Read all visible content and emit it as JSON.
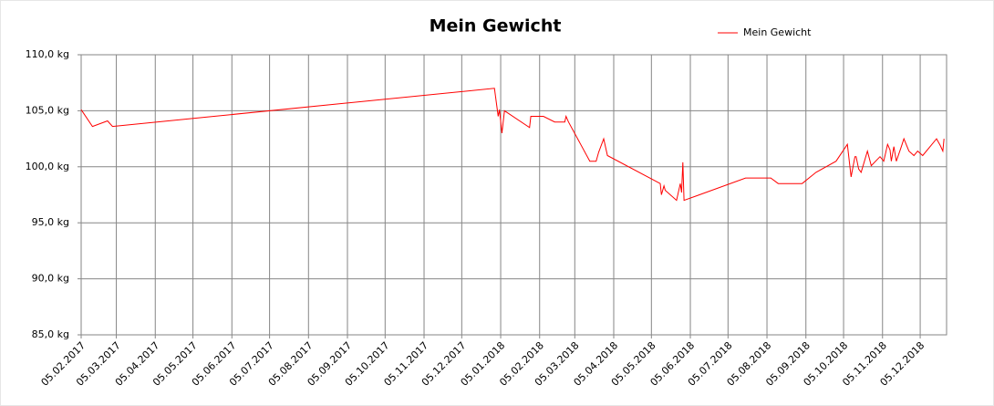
{
  "chart_data": {
    "type": "line",
    "title": "Mein Gewicht",
    "legend": "top-right",
    "grid": true,
    "x": [
      "2017-02-05",
      "2017-02-14",
      "2017-02-26",
      "2017-03-02",
      "2017-12-31",
      "2018-01-03",
      "2018-01-04",
      "2018-01-06",
      "2018-01-08",
      "2018-01-28",
      "2018-01-29",
      "2018-02-08",
      "2018-02-17",
      "2018-02-25",
      "2018-02-26",
      "2018-02-28",
      "2018-03-17",
      "2018-03-22",
      "2018-03-24",
      "2018-03-28",
      "2018-03-31",
      "2018-05-12",
      "2018-05-13",
      "2018-05-15",
      "2018-05-16",
      "2018-05-25",
      "2018-05-28",
      "2018-05-29",
      "2018-05-30",
      "2018-05-31",
      "2018-07-19",
      "2018-08-08",
      "2018-08-14",
      "2018-09-02",
      "2018-09-13",
      "2018-09-29",
      "2018-10-08",
      "2018-10-11",
      "2018-10-14",
      "2018-10-15",
      "2018-10-17",
      "2018-10-19",
      "2018-10-24",
      "2018-10-27",
      "2018-11-03",
      "2018-11-06",
      "2018-11-09",
      "2018-11-11",
      "2018-11-12",
      "2018-11-14",
      "2018-11-16",
      "2018-11-20",
      "2018-11-22",
      "2018-11-26",
      "2018-11-30",
      "2018-12-03",
      "2018-12-07",
      "2018-12-18",
      "2018-12-21",
      "2018-12-23",
      "2018-12-24"
    ],
    "series": [
      {
        "name": "Mein Gewicht",
        "color": "#ff0000",
        "values": [
          105.1,
          103.6,
          104.1,
          103.6,
          107.0,
          104.5,
          105.1,
          103.0,
          105.0,
          103.5,
          104.5,
          104.5,
          104.0,
          104.0,
          104.5,
          104.0,
          100.5,
          100.5,
          101.3,
          102.5,
          101.0,
          98.5,
          97.5,
          98.3,
          97.9,
          97.0,
          98.5,
          97.7,
          100.4,
          97.0,
          99.0,
          99.0,
          98.5,
          98.5,
          99.5,
          100.5,
          102.0,
          99.1,
          100.9,
          100.9,
          99.8,
          99.5,
          101.4,
          100.1,
          100.9,
          100.5,
          102.0,
          101.5,
          100.5,
          101.8,
          100.5,
          101.8,
          102.5,
          101.4,
          101.0,
          101.4,
          101.0,
          102.5,
          101.9,
          101.4,
          102.5
        ]
      }
    ],
    "xlim": [
      "2017-02-05",
      "2018-12-26"
    ],
    "xticks": [
      {
        "value": "2017-02-05",
        "label": "05.02.2017"
      },
      {
        "value": "2017-03-05",
        "label": "05.03.2017"
      },
      {
        "value": "2017-04-05",
        "label": "05.04.2017"
      },
      {
        "value": "2017-05-05",
        "label": "05.05.2017"
      },
      {
        "value": "2017-06-05",
        "label": "05.06.2017"
      },
      {
        "value": "2017-07-05",
        "label": "05.07.2017"
      },
      {
        "value": "2017-08-05",
        "label": "05.08.2017"
      },
      {
        "value": "2017-09-05",
        "label": "05.09.2017"
      },
      {
        "value": "2017-10-05",
        "label": "05.10.2017"
      },
      {
        "value": "2017-11-05",
        "label": "05.11.2017"
      },
      {
        "value": "2017-12-05",
        "label": "05.12.2017"
      },
      {
        "value": "2018-01-05",
        "label": "05.01.2018"
      },
      {
        "value": "2018-02-05",
        "label": "05.02.2018"
      },
      {
        "value": "2018-03-05",
        "label": "05.03.2018"
      },
      {
        "value": "2018-04-05",
        "label": "05.04.2018"
      },
      {
        "value": "2018-05-05",
        "label": "05.05.2018"
      },
      {
        "value": "2018-06-05",
        "label": "05.06.2018"
      },
      {
        "value": "2018-07-05",
        "label": "05.07.2018"
      },
      {
        "value": "2018-08-05",
        "label": "05.08.2018"
      },
      {
        "value": "2018-09-05",
        "label": "05.09.2018"
      },
      {
        "value": "2018-10-05",
        "label": "05.10.2018"
      },
      {
        "value": "2018-11-05",
        "label": "05.11.2018"
      },
      {
        "value": "2018-12-05",
        "label": "05.12.2018"
      }
    ],
    "ylim": [
      85,
      110
    ],
    "yticks": [
      {
        "value": 85,
        "label": "85,0 kg"
      },
      {
        "value": 90,
        "label": "90,0 kg"
      },
      {
        "value": 95,
        "label": "95,0 kg"
      },
      {
        "value": 100,
        "label": "100,0 kg"
      },
      {
        "value": 105,
        "label": "105,0 kg"
      },
      {
        "value": 110,
        "label": "110,0 kg"
      }
    ]
  }
}
